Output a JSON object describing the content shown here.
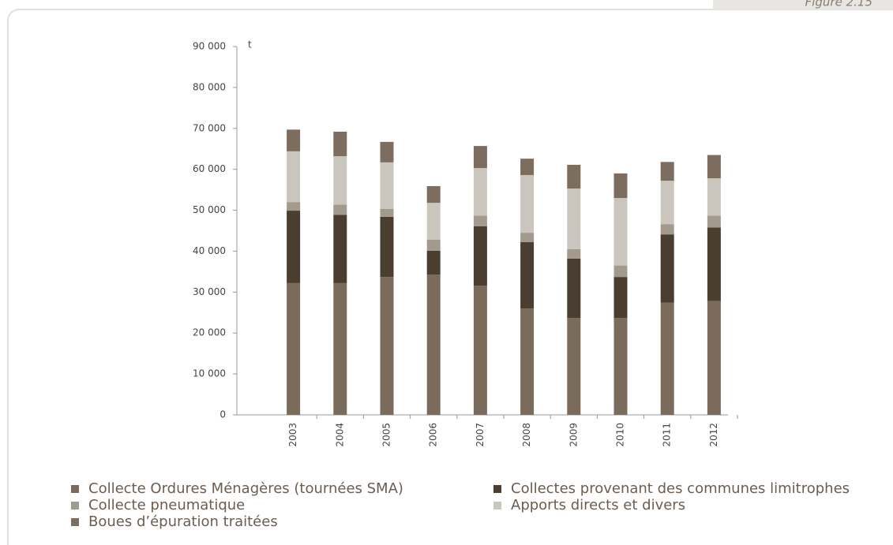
{
  "figure_label": "Figure 2.15",
  "chart_data": {
    "type": "stacked_bar",
    "y_unit": "t",
    "categories": [
      "2003",
      "2004",
      "2005",
      "2006",
      "2007",
      "2008",
      "2009",
      "2010",
      "2011",
      "2012"
    ],
    "series": [
      {
        "name": "Collecte Ordures Ménagères (tournées SMA)",
        "color": "#7a6b5a",
        "values": [
          32200,
          32200,
          33700,
          34300,
          31600,
          26000,
          23700,
          23700,
          27400,
          27800
        ]
      },
      {
        "name": "Collectes provenant des communes limitrophes",
        "color": "#4a3e30",
        "values": [
          17700,
          16700,
          14700,
          5800,
          14500,
          16200,
          14500,
          10000,
          16700,
          18000
        ]
      },
      {
        "name": "Collecte pneumatique",
        "color": "#a39a8e",
        "values": [
          2100,
          2500,
          1900,
          2700,
          2600,
          2300,
          2300,
          2800,
          2500,
          2900
        ]
      },
      {
        "name": "Apports directs et divers",
        "color": "#cbc6bd",
        "values": [
          12400,
          11800,
          11400,
          9000,
          11600,
          14100,
          14800,
          16500,
          10600,
          9100
        ]
      },
      {
        "name": "Boues d’épuration traitées",
        "color": "#7d6d5f",
        "values": [
          5300,
          6000,
          5000,
          4100,
          5400,
          4000,
          5800,
          6000,
          4600,
          5700
        ]
      }
    ],
    "ylim": [
      0,
      90000
    ],
    "yticks": [
      0,
      {
        "value": 10000,
        "label": "10 000"
      },
      {
        "value": 20000,
        "label": "20 000"
      },
      {
        "value": 30000,
        "label": "30 000"
      },
      {
        "value": 40000,
        "label": "40 000"
      },
      {
        "value": 50000,
        "label": "50 000"
      },
      {
        "value": 60000,
        "label": "60 000"
      },
      {
        "value": 70000,
        "label": "70 000"
      },
      {
        "value": 80000,
        "label": "80 000"
      },
      {
        "value": 90000,
        "label": "90 000"
      }
    ],
    "grid": false
  }
}
